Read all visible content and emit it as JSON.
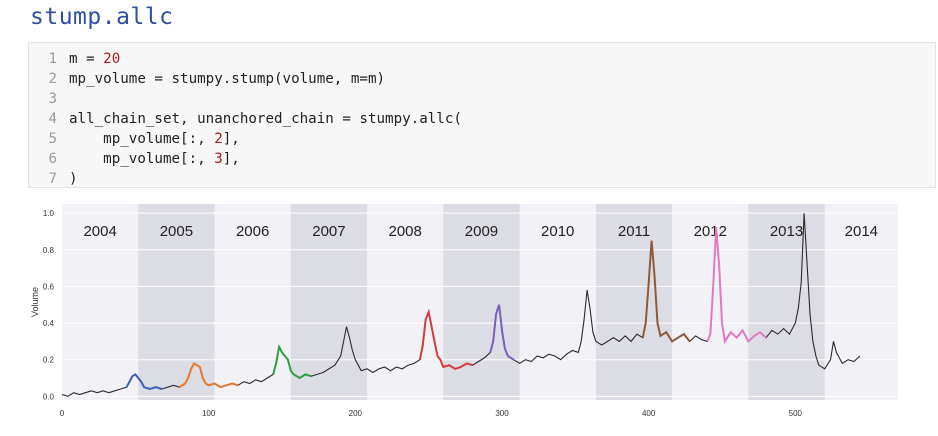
{
  "title": "stump.allc",
  "code": {
    "lines": [
      {
        "no": "1",
        "pre": "m = ",
        "num": "20",
        "post": ""
      },
      {
        "no": "2",
        "pre": "mp_volume = stumpy.stump(volume, m=m)",
        "num": "",
        "post": ""
      },
      {
        "no": "3",
        "pre": "",
        "num": "",
        "post": ""
      },
      {
        "no": "4",
        "pre": "all_chain_set, unanchored_chain = stumpy.allc(",
        "num": "",
        "post": ""
      },
      {
        "no": "5",
        "pre": "    mp_volume[:, ",
        "num": "2",
        "post": "],"
      },
      {
        "no": "6",
        "pre": "    mp_volume[:, ",
        "num": "3",
        "post": "],"
      },
      {
        "no": "7",
        "pre": ")",
        "num": "",
        "post": ""
      }
    ]
  },
  "chart_data": {
    "type": "line",
    "ylabel": "Volume",
    "xlabel": "",
    "xlim": [
      0,
      570
    ],
    "ylim": [
      -0.02,
      1.05
    ],
    "xticks": [
      0,
      100,
      200,
      300,
      400,
      500
    ],
    "yticks": [
      0.0,
      0.2,
      0.4,
      0.6,
      0.8,
      1.0
    ],
    "ytick_labels": [
      "0.0",
      "0.2",
      "0.4",
      "0.6",
      "0.8",
      "1.0"
    ],
    "year_bands": [
      {
        "label": "2004",
        "x0": 0,
        "x1": 52,
        "shaded": false
      },
      {
        "label": "2005",
        "x0": 52,
        "x1": 104,
        "shaded": true
      },
      {
        "label": "2006",
        "x0": 104,
        "x1": 156,
        "shaded": false
      },
      {
        "label": "2007",
        "x0": 156,
        "x1": 208,
        "shaded": true
      },
      {
        "label": "2008",
        "x0": 208,
        "x1": 260,
        "shaded": false
      },
      {
        "label": "2009",
        "x0": 260,
        "x1": 312,
        "shaded": true
      },
      {
        "label": "2010",
        "x0": 312,
        "x1": 364,
        "shaded": false
      },
      {
        "label": "2011",
        "x0": 364,
        "x1": 416,
        "shaded": true
      },
      {
        "label": "2012",
        "x0": 416,
        "x1": 468,
        "shaded": false
      },
      {
        "label": "2013",
        "x0": 468,
        "x1": 520,
        "shaded": true
      },
      {
        "label": "2014",
        "x0": 520,
        "x1": 570,
        "shaded": false
      }
    ],
    "base_series": {
      "color": "#2b2b2b",
      "points": [
        [
          0,
          0.01
        ],
        [
          4,
          0.0
        ],
        [
          8,
          0.02
        ],
        [
          12,
          0.01
        ],
        [
          16,
          0.02
        ],
        [
          20,
          0.03
        ],
        [
          24,
          0.02
        ],
        [
          28,
          0.03
        ],
        [
          32,
          0.02
        ],
        [
          36,
          0.03
        ],
        [
          40,
          0.04
        ],
        [
          44,
          0.05
        ],
        [
          46,
          0.08
        ],
        [
          48,
          0.11
        ],
        [
          50,
          0.12
        ],
        [
          52,
          0.1
        ],
        [
          54,
          0.08
        ],
        [
          56,
          0.05
        ],
        [
          60,
          0.04
        ],
        [
          64,
          0.05
        ],
        [
          68,
          0.04
        ],
        [
          72,
          0.05
        ],
        [
          76,
          0.06
        ],
        [
          80,
          0.05
        ],
        [
          84,
          0.07
        ],
        [
          86,
          0.1
        ],
        [
          88,
          0.15
        ],
        [
          90,
          0.18
        ],
        [
          92,
          0.17
        ],
        [
          94,
          0.16
        ],
        [
          96,
          0.1
        ],
        [
          98,
          0.07
        ],
        [
          100,
          0.06
        ],
        [
          104,
          0.07
        ],
        [
          108,
          0.05
        ],
        [
          112,
          0.06
        ],
        [
          116,
          0.07
        ],
        [
          120,
          0.06
        ],
        [
          124,
          0.08
        ],
        [
          128,
          0.07
        ],
        [
          132,
          0.09
        ],
        [
          136,
          0.08
        ],
        [
          140,
          0.1
        ],
        [
          144,
          0.12
        ],
        [
          146,
          0.18
        ],
        [
          148,
          0.27
        ],
        [
          150,
          0.24
        ],
        [
          152,
          0.22
        ],
        [
          154,
          0.2
        ],
        [
          156,
          0.14
        ],
        [
          158,
          0.12
        ],
        [
          162,
          0.1
        ],
        [
          166,
          0.12
        ],
        [
          170,
          0.11
        ],
        [
          174,
          0.12
        ],
        [
          178,
          0.13
        ],
        [
          182,
          0.15
        ],
        [
          186,
          0.17
        ],
        [
          190,
          0.22
        ],
        [
          192,
          0.3
        ],
        [
          194,
          0.38
        ],
        [
          196,
          0.32
        ],
        [
          198,
          0.25
        ],
        [
          200,
          0.2
        ],
        [
          202,
          0.17
        ],
        [
          204,
          0.14
        ],
        [
          208,
          0.15
        ],
        [
          212,
          0.13
        ],
        [
          216,
          0.15
        ],
        [
          220,
          0.16
        ],
        [
          224,
          0.14
        ],
        [
          228,
          0.16
        ],
        [
          232,
          0.15
        ],
        [
          236,
          0.17
        ],
        [
          240,
          0.18
        ],
        [
          244,
          0.2
        ],
        [
          246,
          0.28
        ],
        [
          248,
          0.42
        ],
        [
          250,
          0.46
        ],
        [
          252,
          0.38
        ],
        [
          254,
          0.3
        ],
        [
          256,
          0.22
        ],
        [
          258,
          0.2
        ],
        [
          260,
          0.16
        ],
        [
          264,
          0.17
        ],
        [
          268,
          0.15
        ],
        [
          272,
          0.16
        ],
        [
          276,
          0.18
        ],
        [
          280,
          0.17
        ],
        [
          284,
          0.19
        ],
        [
          288,
          0.21
        ],
        [
          292,
          0.24
        ],
        [
          294,
          0.3
        ],
        [
          296,
          0.45
        ],
        [
          298,
          0.5
        ],
        [
          300,
          0.36
        ],
        [
          302,
          0.26
        ],
        [
          304,
          0.22
        ],
        [
          308,
          0.2
        ],
        [
          312,
          0.18
        ],
        [
          316,
          0.2
        ],
        [
          320,
          0.19
        ],
        [
          324,
          0.22
        ],
        [
          328,
          0.21
        ],
        [
          332,
          0.23
        ],
        [
          336,
          0.22
        ],
        [
          340,
          0.2
        ],
        [
          344,
          0.23
        ],
        [
          348,
          0.25
        ],
        [
          352,
          0.24
        ],
        [
          354,
          0.3
        ],
        [
          356,
          0.42
        ],
        [
          358,
          0.58
        ],
        [
          360,
          0.48
        ],
        [
          362,
          0.35
        ],
        [
          364,
          0.3
        ],
        [
          368,
          0.28
        ],
        [
          372,
          0.3
        ],
        [
          376,
          0.32
        ],
        [
          380,
          0.3
        ],
        [
          384,
          0.33
        ],
        [
          388,
          0.3
        ],
        [
          392,
          0.34
        ],
        [
          396,
          0.32
        ],
        [
          398,
          0.4
        ],
        [
          400,
          0.62
        ],
        [
          402,
          0.85
        ],
        [
          404,
          0.66
        ],
        [
          406,
          0.4
        ],
        [
          408,
          0.33
        ],
        [
          412,
          0.35
        ],
        [
          416,
          0.3
        ],
        [
          420,
          0.32
        ],
        [
          424,
          0.34
        ],
        [
          428,
          0.3
        ],
        [
          432,
          0.33
        ],
        [
          436,
          0.31
        ],
        [
          440,
          0.3
        ],
        [
          442,
          0.34
        ],
        [
          444,
          0.6
        ],
        [
          446,
          0.92
        ],
        [
          448,
          0.72
        ],
        [
          450,
          0.4
        ],
        [
          452,
          0.3
        ],
        [
          456,
          0.35
        ],
        [
          460,
          0.32
        ],
        [
          464,
          0.36
        ],
        [
          468,
          0.3
        ],
        [
          472,
          0.33
        ],
        [
          476,
          0.35
        ],
        [
          480,
          0.32
        ],
        [
          484,
          0.36
        ],
        [
          488,
          0.34
        ],
        [
          492,
          0.37
        ],
        [
          496,
          0.34
        ],
        [
          500,
          0.4
        ],
        [
          502,
          0.48
        ],
        [
          504,
          0.62
        ],
        [
          506,
          1.0
        ],
        [
          508,
          0.72
        ],
        [
          510,
          0.45
        ],
        [
          512,
          0.3
        ],
        [
          514,
          0.22
        ],
        [
          516,
          0.17
        ],
        [
          520,
          0.15
        ],
        [
          524,
          0.2
        ],
        [
          526,
          0.3
        ],
        [
          528,
          0.24
        ],
        [
          532,
          0.18
        ],
        [
          536,
          0.2
        ],
        [
          540,
          0.19
        ],
        [
          544,
          0.22
        ]
      ]
    },
    "chain_segments": [
      {
        "color": "#3a5fb8",
        "x0": 42,
        "x1": 70
      },
      {
        "color": "#e9782b",
        "x0": 80,
        "x1": 120
      },
      {
        "color": "#2f9e44",
        "x0": 142,
        "x1": 170
      },
      {
        "color": "#d43b3b",
        "x0": 242,
        "x1": 280
      },
      {
        "color": "#7a5ec0",
        "x0": 290,
        "x1": 310
      },
      {
        "color": "#8c5a3c",
        "x0": 396,
        "x1": 430
      },
      {
        "color": "#e07bc0",
        "x0": 440,
        "x1": 480
      }
    ]
  }
}
